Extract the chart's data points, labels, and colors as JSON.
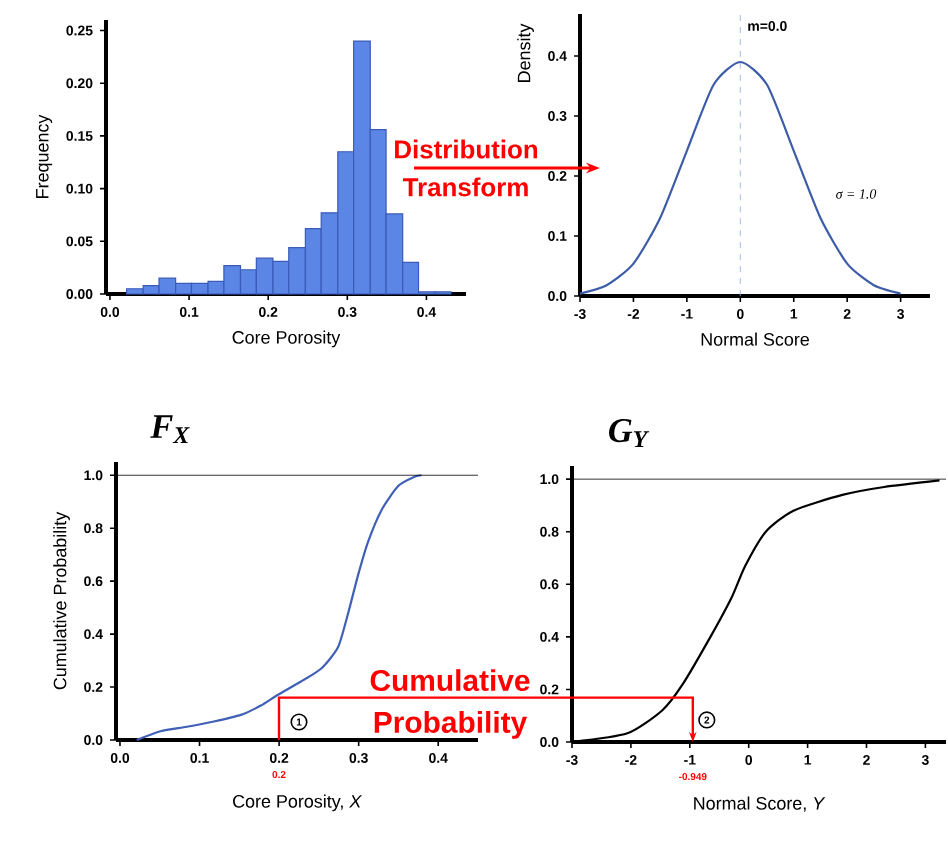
{
  "chart_data": [
    {
      "type": "histogram",
      "xlabel": "Core Porosity",
      "ylabel": "Frequency",
      "color": "#5b86e5",
      "bins": [
        0.021,
        0.042,
        0.062,
        0.083,
        0.103,
        0.124,
        0.144,
        0.165,
        0.185,
        0.206,
        0.226,
        0.247,
        0.267,
        0.288,
        0.308,
        0.329,
        0.349,
        0.37,
        0.39,
        0.411,
        0.431
      ],
      "values": [
        0.005,
        0.008,
        0.015,
        0.01,
        0.01,
        0.012,
        0.027,
        0.023,
        0.034,
        0.031,
        0.044,
        0.062,
        0.077,
        0.135,
        0.24,
        0.156,
        0.076,
        0.03,
        0.002,
        0.002
      ],
      "xlim": [
        -0.005,
        0.45
      ],
      "ylim": [
        0,
        0.26
      ],
      "xticks": [
        {
          "value": 0,
          "label": "0.0"
        },
        {
          "value": 0.1,
          "label": "0.1"
        },
        {
          "value": 0.2,
          "label": "0.2"
        },
        {
          "value": 0.3,
          "label": "0.3"
        },
        {
          "value": 0.4,
          "label": "0.4"
        }
      ],
      "yticks": [
        {
          "value": 0,
          "label": "0.00"
        },
        {
          "value": 0.05,
          "label": "0.05"
        },
        {
          "value": 0.1,
          "label": "0.10"
        },
        {
          "value": 0.15,
          "label": "0.15"
        },
        {
          "value": 0.2,
          "label": "0.20"
        },
        {
          "value": 0.25,
          "label": "0.25"
        }
      ],
      "annotations": [
        "Distribution Transform"
      ]
    },
    {
      "type": "line",
      "xlabel": "Normal Score",
      "ylabel": "Density",
      "color": "#3c5ca8",
      "x": [
        -3,
        -2.5,
        -2,
        -1.5,
        -1,
        -0.5,
        0,
        0.5,
        1,
        1.5,
        2,
        2.5,
        3
      ],
      "values": [
        0.004,
        0.018,
        0.054,
        0.13,
        0.242,
        0.352,
        0.39,
        0.352,
        0.242,
        0.13,
        0.054,
        0.018,
        0.004
      ],
      "xlim": [
        -3,
        3.55
      ],
      "ylim": [
        0,
        0.47
      ],
      "xticks": [
        -3,
        -2,
        -1,
        0,
        1,
        2,
        3
      ],
      "yticks": [
        {
          "value": 0,
          "label": "0.0"
        },
        {
          "value": 0.1,
          "label": "0.1"
        },
        {
          "value": 0.2,
          "label": "0.2"
        },
        {
          "value": 0.3,
          "label": "0.3"
        },
        {
          "value": 0.4,
          "label": "0.4"
        }
      ],
      "ref_lines": [
        {
          "axis": "x",
          "value": 0,
          "label": "m=0.0",
          "color": "#8fa8e0",
          "line_style": "dashed"
        }
      ],
      "annotations": [
        "σ = 1.0"
      ]
    },
    {
      "type": "line",
      "title": "F$_{X}$",
      "xlabel": "Core Porosity, *X*",
      "ylabel": "Cumulative Probability",
      "color": "#4060b8",
      "x": [
        0.021,
        0.051,
        0.084,
        0.118,
        0.152,
        0.177,
        0.198,
        0.227,
        0.253,
        0.274,
        0.286,
        0.299,
        0.312,
        0.329,
        0.35,
        0.371,
        0.379
      ],
      "values": [
        0,
        0.033,
        0.05,
        0.07,
        0.095,
        0.13,
        0.17,
        0.22,
        0.27,
        0.35,
        0.47,
        0.62,
        0.75,
        0.87,
        0.96,
        0.995,
        1.0
      ],
      "xlim": [
        -0.005,
        0.45
      ],
      "ylim": [
        0,
        1.05
      ],
      "xticks": [
        {
          "value": 0,
          "label": "0.0"
        },
        {
          "value": 0.1,
          "label": "0.1"
        },
        {
          "value": 0.2,
          "label": "0.2"
        },
        {
          "value": 0.3,
          "label": "0.3"
        },
        {
          "value": 0.4,
          "label": "0.4"
        }
      ],
      "yticks": [
        {
          "value": 0,
          "label": "0.0"
        },
        {
          "value": 0.2,
          "label": "0.2"
        },
        {
          "value": 0.4,
          "label": "0.4"
        },
        {
          "value": 0.6,
          "label": "0.6"
        },
        {
          "value": 0.8,
          "label": "0.8"
        },
        {
          "value": 1.0,
          "label": "1.0"
        }
      ],
      "ref_lines": [
        {
          "axis": "y",
          "value": 1.0,
          "color": "#000000"
        }
      ],
      "annotations": [
        "0.2",
        "1",
        "Cumulative Probability"
      ]
    },
    {
      "type": "line",
      "title": "G$_{Y}$",
      "xlabel": "Normal Score, *Y*",
      "color": "#000000",
      "x": [
        -3,
        -2.06,
        -1.47,
        -1.12,
        -0.65,
        -0.29,
        -0.06,
        0.29,
        0.76,
        1.59,
        2.3,
        3.24
      ],
      "values": [
        0,
        0.033,
        0.12,
        0.22,
        0.4,
        0.55,
        0.67,
        0.8,
        0.88,
        0.94,
        0.97,
        0.995
      ],
      "xlim": [
        -3,
        3.35
      ],
      "ylim": [
        0,
        1.05
      ],
      "xticks": [
        -3,
        -2,
        -1,
        0,
        1,
        2,
        3
      ],
      "yticks": [
        {
          "value": 0,
          "label": "0.0"
        },
        {
          "value": 0.2,
          "label": "0.2"
        },
        {
          "value": 0.4,
          "label": "0.4"
        },
        {
          "value": 0.6,
          "label": "0.6"
        },
        {
          "value": 0.8,
          "label": "0.8"
        },
        {
          "value": 1.0,
          "label": "1.0"
        }
      ],
      "ref_lines": [
        {
          "axis": "y",
          "value": 1.0,
          "color": "#000000"
        }
      ],
      "annotations": [
        "-0.949",
        "2"
      ]
    }
  ]
}
